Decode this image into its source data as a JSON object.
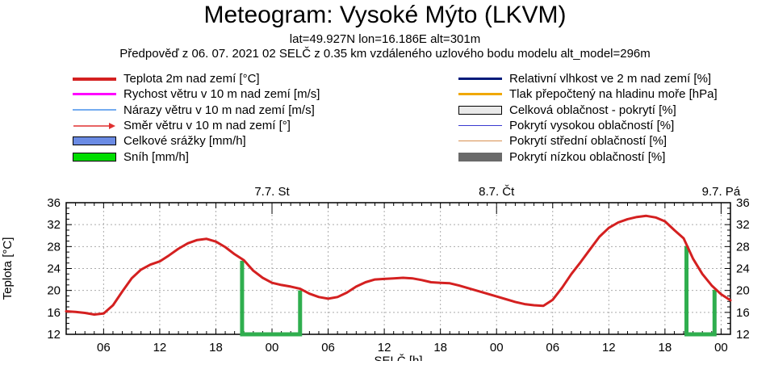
{
  "header": {
    "title": "Meteogram: Vysoké Mýto (LKVM)",
    "subtitle": "lat=49.927N lon=16.186E alt=301m",
    "forecast_line": "Předpověď z 06. 07. 2021 02 SELČ z 0.35 km vzdáleného uzlového bodu modelu alt_model=296m"
  },
  "legend": {
    "left": [
      {
        "label": "Teplota 2m nad zemí [°C]",
        "swatch": "line",
        "color": "#d42020",
        "thickness": 4
      },
      {
        "label": "Rychost větru v 10 m nad zemí [m/s]",
        "swatch": "line",
        "color": "#ff00ff",
        "thickness": 3
      },
      {
        "label": "Nárazy větru v 10 m nad zemí [m/s]",
        "swatch": "line",
        "color": "#74acf0",
        "thickness": 1.5
      },
      {
        "label": "Směr větru v 10 m nad zemí [°]",
        "swatch": "arrow",
        "color": "#e03030",
        "thickness": 1.5
      },
      {
        "label": "Celkové srážky [mm/h]",
        "swatch": "box",
        "color": "#6b8be4",
        "border": "#000000"
      },
      {
        "label": "Sníh [mm/h]",
        "swatch": "box",
        "color": "#00dd00",
        "border": "#000000"
      }
    ],
    "right": [
      {
        "label": "Relativní vlhkost ve 2 m nad zemí [%]",
        "swatch": "line",
        "color": "#001a7a",
        "thickness": 3
      },
      {
        "label": "Tlak přepočtený na hladinu moře [hPa]",
        "swatch": "line",
        "color": "#f0a800",
        "thickness": 3
      },
      {
        "label": "Celková oblačnost - pokrytí [%]",
        "swatch": "box",
        "color": "#e9e9e9",
        "border": "#000000"
      },
      {
        "label": "Pokrytí vysokou oblačností [%]",
        "swatch": "line",
        "color": "#3a3ad0",
        "thickness": 1.2
      },
      {
        "label": "Pokrytí střední oblačností [%]",
        "swatch": "line",
        "color": "#d89050",
        "thickness": 1.2
      },
      {
        "label": "Pokrytí nízkou oblačností [%]",
        "swatch": "box",
        "color": "#6a6a6a",
        "border": "#6a6a6a"
      }
    ]
  },
  "chart_data": {
    "type": "line",
    "ylabel": "Teplota [°C]",
    "xlabel": "SELČ [h]",
    "ylim": [
      12,
      36
    ],
    "y_major_ticks": [
      12,
      16,
      20,
      24,
      28,
      32,
      36
    ],
    "y_minor_step": 1,
    "grid": true,
    "x_hours_start": 2,
    "x_hours_end": 73,
    "x_tick_hours": [
      6,
      12,
      18,
      24,
      30,
      36,
      42,
      48,
      54,
      60,
      66,
      72
    ],
    "x_tick_labels": [
      "06",
      "12",
      "18",
      "00",
      "06",
      "12",
      "18",
      "00",
      "06",
      "12",
      "18",
      "00"
    ],
    "day_labels": [
      {
        "label": "7.7. St",
        "hour": 24
      },
      {
        "label": "8.7. Čt",
        "hour": 48
      },
      {
        "label": "9.7. Pá",
        "hour": 72
      }
    ],
    "series": [
      {
        "name": "Teplota 2m nad zemí [°C]",
        "color": "#d42020",
        "thickness": 3,
        "hours_start": 2,
        "hours_step": 1,
        "values": [
          16.2,
          16.1,
          15.9,
          15.6,
          15.8,
          17.3,
          19.8,
          22.2,
          23.8,
          24.7,
          25.3,
          26.4,
          27.6,
          28.6,
          29.2,
          29.4,
          28.9,
          27.9,
          26.6,
          25.5,
          23.6,
          22.3,
          21.4,
          21.0,
          20.7,
          20.3,
          19.4,
          18.8,
          18.5,
          18.8,
          19.6,
          20.7,
          21.5,
          22.0,
          22.1,
          22.2,
          22.3,
          22.2,
          21.9,
          21.5,
          21.4,
          21.3,
          20.9,
          20.4,
          19.9,
          19.4,
          18.9,
          18.4,
          17.9,
          17.5,
          17.3,
          17.2,
          18.3,
          20.5,
          23.0,
          25.2,
          27.5,
          29.8,
          31.4,
          32.4,
          33.0,
          33.4,
          33.6,
          33.3,
          32.6,
          31.0,
          29.5,
          25.8,
          23.0,
          20.9,
          19.3,
          18.2
        ]
      }
    ],
    "night_markers": {
      "color": "#2fae4e",
      "thickness": 5,
      "brackets": [
        {
          "from_hour": 20.8,
          "to_hour": 27.0
        },
        {
          "from_hour": 68.3,
          "to_hour": 71.3
        }
      ]
    }
  }
}
